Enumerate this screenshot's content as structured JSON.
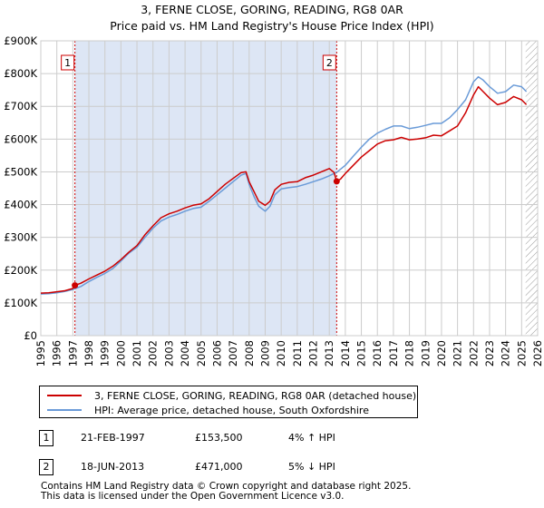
{
  "chart_data": {
    "type": "line",
    "title": "3, FERNE CLOSE, GORING, READING, RG8 0AR",
    "subtitle": "Price paid vs. HM Land Registry's House Price Index (HPI)",
    "xlabel": "",
    "ylabel": "",
    "xlim": [
      1995,
      2026
    ],
    "ylim": [
      0,
      900000
    ],
    "x_ticks": [
      "1995",
      "1996",
      "1997",
      "1998",
      "1999",
      "2000",
      "2001",
      "2002",
      "2003",
      "2004",
      "2005",
      "2006",
      "2007",
      "2008",
      "2009",
      "2010",
      "2011",
      "2012",
      "2013",
      "2014",
      "2015",
      "2016",
      "2017",
      "2018",
      "2019",
      "2020",
      "2021",
      "2022",
      "2023",
      "2024",
      "2025",
      "2026"
    ],
    "y_ticks": [
      {
        "value": 0,
        "label": "£0"
      },
      {
        "value": 100000,
        "label": "£100K"
      },
      {
        "value": 200000,
        "label": "£200K"
      },
      {
        "value": 300000,
        "label": "£300K"
      },
      {
        "value": 400000,
        "label": "£400K"
      },
      {
        "value": 500000,
        "label": "£500K"
      },
      {
        "value": 600000,
        "label": "£600K"
      },
      {
        "value": 700000,
        "label": "£700K"
      },
      {
        "value": 800000,
        "label": "£800K"
      },
      {
        "value": 900000,
        "label": "£900K"
      }
    ],
    "grid": true,
    "shaded_region": {
      "from": 1997.13,
      "to": 2013.46,
      "color": "#dde6f5"
    },
    "hatched_region": {
      "from": 2025.25,
      "to": 2026
    },
    "markers": [
      {
        "label": "1",
        "x": 1997.13,
        "y": 153500
      },
      {
        "label": "2",
        "x": 2013.46,
        "y": 471000
      }
    ],
    "series": [
      {
        "name": "3, FERNE CLOSE, GORING, READING, RG8 0AR (detached house)",
        "color": "#cc0000",
        "x": [
          1995,
          1995.5,
          1996,
          1996.5,
          1997,
          1997.13,
          1997.5,
          1998,
          1998.5,
          1999,
          1999.5,
          2000,
          2000.5,
          2001,
          2001.5,
          2002,
          2002.5,
          2003,
          2003.5,
          2004,
          2004.5,
          2005,
          2005.5,
          2006,
          2006.5,
          2007,
          2007.5,
          2007.8,
          2008,
          2008.3,
          2008.6,
          2009,
          2009.3,
          2009.6,
          2010,
          2010.5,
          2011,
          2011.5,
          2012,
          2012.5,
          2013,
          2013.3,
          2013.46,
          2013.7,
          2014,
          2014.5,
          2015,
          2015.5,
          2016,
          2016.5,
          2017,
          2017.5,
          2018,
          2018.5,
          2019,
          2019.5,
          2020,
          2020.5,
          2021,
          2021.5,
          2022,
          2022.3,
          2022.6,
          2023,
          2023.5,
          2024,
          2024.5,
          2025,
          2025.3
        ],
        "values": [
          130000,
          131000,
          134000,
          137000,
          144000,
          153500,
          160000,
          173000,
          185000,
          197000,
          212000,
          232000,
          255000,
          275000,
          308000,
          335000,
          360000,
          372000,
          380000,
          390000,
          398000,
          402000,
          418000,
          440000,
          462000,
          480000,
          498000,
          500000,
          470000,
          440000,
          410000,
          398000,
          410000,
          445000,
          462000,
          468000,
          470000,
          482000,
          490000,
          500000,
          510000,
          498000,
          471000,
          478000,
          495000,
          520000,
          545000,
          565000,
          585000,
          595000,
          598000,
          605000,
          598000,
          600000,
          604000,
          612000,
          610000,
          625000,
          640000,
          680000,
          735000,
          760000,
          745000,
          725000,
          705000,
          712000,
          730000,
          720000,
          705000
        ]
      },
      {
        "name": "HPI: Average price, detached house, South Oxfordshire",
        "color": "#6a9bd8",
        "x": [
          1995,
          1995.5,
          1996,
          1996.5,
          1997,
          1997.5,
          1998,
          1998.5,
          1999,
          1999.5,
          2000,
          2000.5,
          2001,
          2001.5,
          2002,
          2002.5,
          2003,
          2003.5,
          2004,
          2004.5,
          2005,
          2005.5,
          2006,
          2006.5,
          2007,
          2007.5,
          2007.8,
          2008,
          2008.3,
          2008.6,
          2009,
          2009.3,
          2009.6,
          2010,
          2010.5,
          2011,
          2011.5,
          2012,
          2012.5,
          2013,
          2013.5,
          2014,
          2014.5,
          2015,
          2015.5,
          2016,
          2016.5,
          2017,
          2017.5,
          2018,
          2018.5,
          2019,
          2019.5,
          2020,
          2020.5,
          2021,
          2021.5,
          2022,
          2022.3,
          2022.6,
          2023,
          2023.5,
          2024,
          2024.5,
          2025,
          2025.3
        ],
        "values": [
          127000,
          128000,
          131000,
          135000,
          141000,
          150000,
          165000,
          178000,
          190000,
          205000,
          228000,
          252000,
          270000,
          300000,
          328000,
          350000,
          362000,
          370000,
          380000,
          388000,
          392000,
          410000,
          430000,
          450000,
          470000,
          490000,
          495000,
          462000,
          425000,
          395000,
          380000,
          395000,
          430000,
          448000,
          452000,
          455000,
          462000,
          470000,
          478000,
          488000,
          500000,
          520000,
          548000,
          575000,
          600000,
          618000,
          630000,
          640000,
          640000,
          632000,
          636000,
          642000,
          648000,
          648000,
          665000,
          690000,
          720000,
          775000,
          790000,
          780000,
          760000,
          740000,
          745000,
          765000,
          760000,
          745000
        ]
      }
    ]
  },
  "transactions": [
    {
      "num": "1",
      "date": "21-FEB-1997",
      "price": "£153,500",
      "hpi": "4% ↑ HPI"
    },
    {
      "num": "2",
      "date": "18-JUN-2013",
      "price": "£471,000",
      "hpi": "5% ↓ HPI"
    }
  ],
  "footer": {
    "line1": "Contains HM Land Registry data © Crown copyright and database right 2025.",
    "line2": "This data is licensed under the Open Government Licence v3.0."
  },
  "colors": {
    "price_line": "#cc0000",
    "hpi_line": "#6a9bd8",
    "shade": "#dde6f5",
    "grid": "#cccccc"
  }
}
